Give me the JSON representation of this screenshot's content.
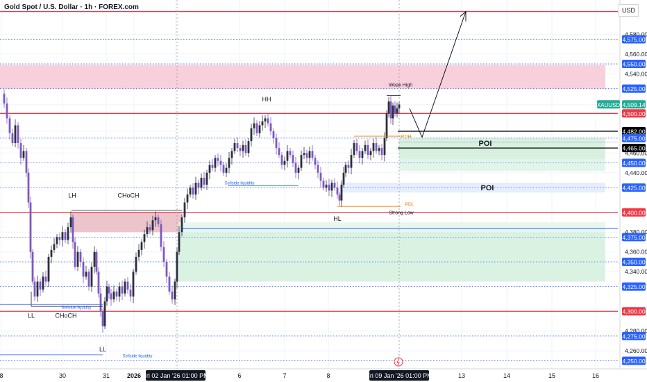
{
  "header": {
    "title": "Gold Spot / U.S. Dollar · 1h · FOREX.com",
    "currency": "USD"
  },
  "chart_data": {
    "type": "candlestick",
    "title": "Gold Spot / U.S. Dollar · 1h · FOREX.com",
    "ylim": [
      4244,
      4609
    ],
    "y_ticks": [
      4260,
      4280,
      4340,
      4360,
      4380,
      4440,
      4460,
      4540,
      4560,
      4580
    ],
    "y_labels_boxed": [
      {
        "value": 4575,
        "text": "4,575.00",
        "color": "#2962ff"
      },
      {
        "value": 4550,
        "text": "4,550.00",
        "color": "#2962ff"
      },
      {
        "value": 4525,
        "text": "4,525.00",
        "color": "#2962ff"
      },
      {
        "value": 4509.14,
        "text": "4,509.14",
        "color": "#22ab94"
      },
      {
        "value": 4500,
        "text": "4,500.00",
        "color": "#f23645"
      },
      {
        "value": 4482,
        "text": "4,482.00",
        "color": "#000000"
      },
      {
        "value": 4475,
        "text": "4,475.00",
        "color": "#2962ff"
      },
      {
        "value": 4465,
        "text": "4,465.00",
        "color": "#000000"
      },
      {
        "value": 4450,
        "text": "4,450.00",
        "color": "#2962ff"
      },
      {
        "value": 4425,
        "text": "4,425.00",
        "color": "#2962ff"
      },
      {
        "value": 4400,
        "text": "4,400.00",
        "color": "#f23645"
      },
      {
        "value": 4375,
        "text": "4,375.00",
        "color": "#2962ff"
      },
      {
        "value": 4350,
        "text": "4,350.00",
        "color": "#2962ff"
      },
      {
        "value": 4325,
        "text": "4,325.00",
        "color": "#2962ff"
      },
      {
        "value": 4300,
        "text": "4,300.00",
        "color": "#f23645"
      },
      {
        "value": 4275,
        "text": "4,275.00",
        "color": "#2962ff"
      },
      {
        "value": 4250,
        "text": "4,250.00",
        "color": "#2962ff"
      }
    ],
    "symbol_tag": "XAUUSD",
    "x_labels": [
      {
        "text": "8",
        "box": false
      },
      {
        "text": "30",
        "box": false
      },
      {
        "text": "31",
        "box": false
      },
      {
        "text": "2026",
        "box": false,
        "bold": true
      },
      {
        "text": "Fri 02 Jan '26  01:00 PM",
        "box": true
      },
      {
        "text": "6",
        "box": false
      },
      {
        "text": "7",
        "box": false
      },
      {
        "text": "8",
        "box": false
      },
      {
        "text": "Fri 09 Jan '26  01:00 PM",
        "box": true
      },
      {
        "text": "13",
        "box": false
      },
      {
        "text": "14",
        "box": false
      },
      {
        "text": "15",
        "box": false
      },
      {
        "text": "16",
        "box": false
      }
    ],
    "horizontal_lines": [
      {
        "value": 4603,
        "color": "#f23645",
        "style": "solid"
      },
      {
        "value": 4575,
        "color": "#2962ff",
        "style": "dotted"
      },
      {
        "value": 4550,
        "color": "#2962ff",
        "style": "dotted"
      },
      {
        "value": 4525,
        "color": "#2962ff",
        "style": "dotted"
      },
      {
        "value": 4500,
        "color": "#f23645",
        "style": "solid"
      },
      {
        "value": 4475,
        "color": "#2962ff",
        "style": "dotted"
      },
      {
        "value": 4450,
        "color": "#2962ff",
        "style": "dotted"
      },
      {
        "value": 4425,
        "color": "#2962ff",
        "style": "dotted"
      },
      {
        "value": 4400,
        "color": "#f23645",
        "style": "solid"
      },
      {
        "value": 4375,
        "color": "#2962ff",
        "style": "dotted"
      },
      {
        "value": 4350,
        "color": "#2962ff",
        "style": "dotted"
      },
      {
        "value": 4325,
        "color": "#2962ff",
        "style": "dotted"
      },
      {
        "value": 4300,
        "color": "#f23645",
        "style": "solid"
      },
      {
        "value": 4275,
        "color": "#2962ff",
        "style": "dotted"
      },
      {
        "value": 4250,
        "color": "#2962ff",
        "style": "dotted"
      }
    ],
    "zones": [
      {
        "top": 4549,
        "bottom": 4525,
        "color": "#f8d0dc"
      },
      {
        "top": 4400,
        "bottom": 4380,
        "color": "#ecc4cc"
      },
      {
        "top": 4475,
        "bottom": 4454,
        "color": "#d8f0e0"
      },
      {
        "top": 4454,
        "bottom": 4442,
        "color": "#e2f5ea"
      },
      {
        "top": 4430,
        "bottom": 4420,
        "color": "#e6edfb"
      },
      {
        "top": 4390,
        "bottom": 4330,
        "color": "#daf2e2"
      }
    ],
    "poi_labels": [
      {
        "text": "POI",
        "value": 4470
      },
      {
        "text": "POI",
        "value": 4425
      }
    ],
    "annotations": [
      {
        "text": "HH",
        "value": 4508
      },
      {
        "text": "LH",
        "value": 4410
      },
      {
        "text": "CHoCH",
        "value": 4410
      },
      {
        "text": "LL",
        "value": 4299
      },
      {
        "text": "CHoCH",
        "value": 4299
      },
      {
        "text": "LL",
        "value": 4268
      },
      {
        "text": "HL",
        "value": 4400
      },
      {
        "text": "Weak High",
        "value": 4525
      },
      {
        "text": "PDH",
        "value": 4477
      },
      {
        "text": "PDL",
        "value": 4405
      },
      {
        "text": "Strong Low",
        "value": 4401
      },
      {
        "text": "Sellside liquidity",
        "value": 4427
      },
      {
        "text": "Sellside liquidity",
        "value": 4302
      },
      {
        "text": "Sellside liquidity",
        "value": 4252
      }
    ],
    "grid": true,
    "legend": "none"
  }
}
